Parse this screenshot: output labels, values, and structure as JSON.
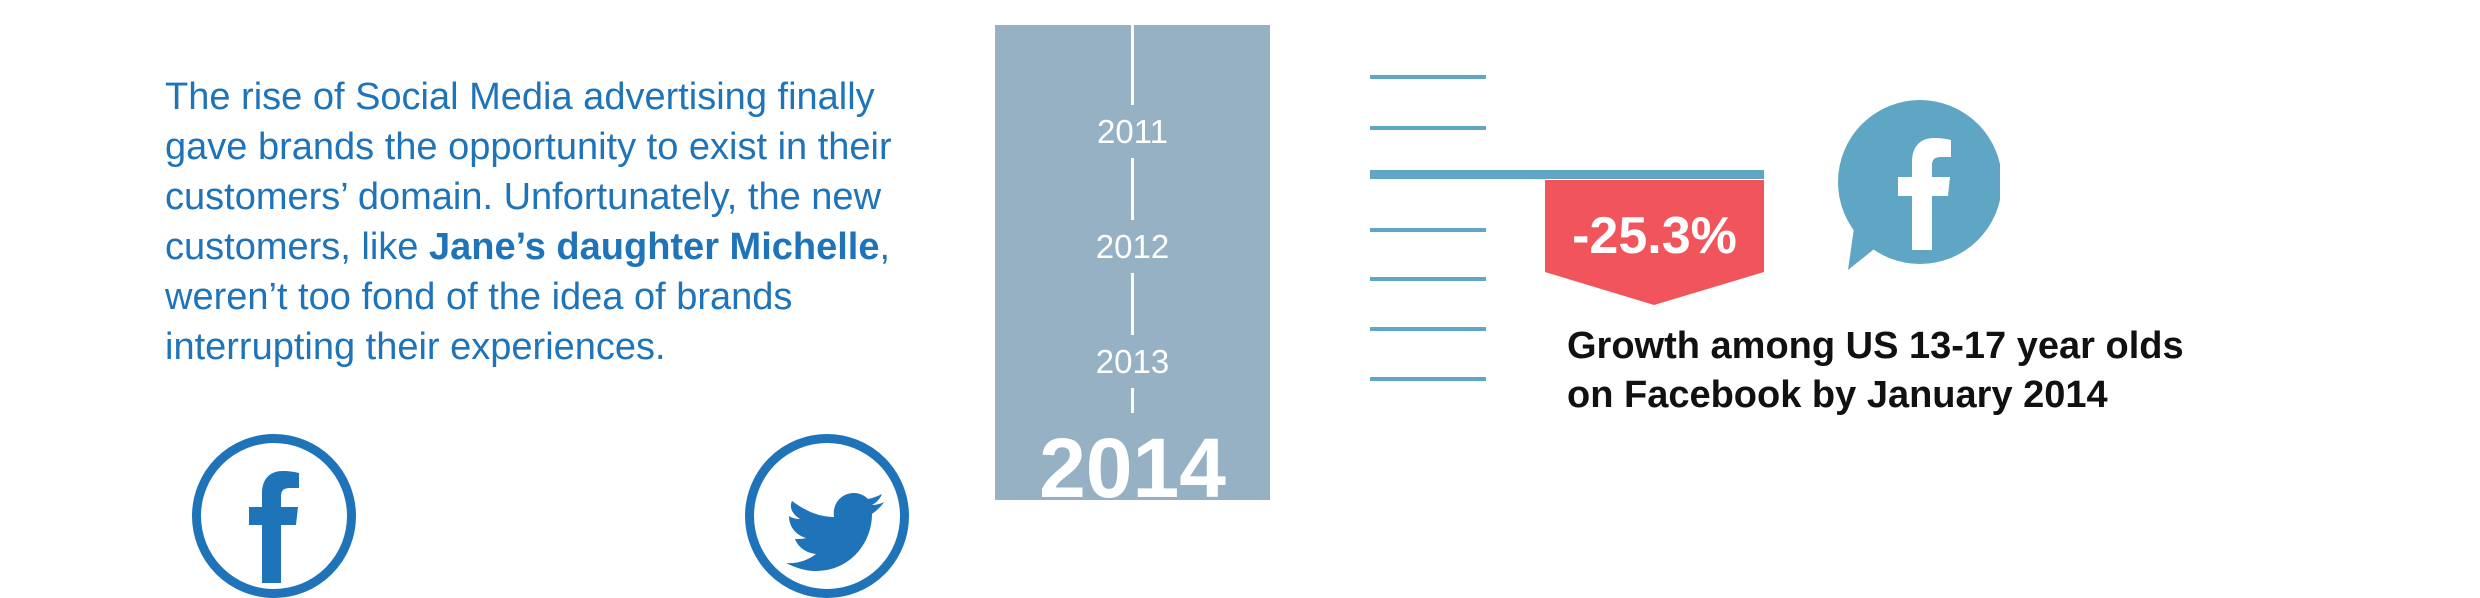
{
  "story": {
    "text_1": "The rise of Social Media advertising finally gave brands the opportunity to exist in their customers’ domain. Unfortunately, the new customers, like ",
    "highlight": "Jane’s daughter Michelle",
    "text_2": ", weren’t too fond of the idea of brands interrupting their experiences."
  },
  "icons": {
    "facebook_circle": "facebook-icon",
    "twitter_circle": "twitter-icon",
    "facebook_bubble": "facebook-speech-bubble-icon",
    "outline_color": "#1e73b9"
  },
  "timeline": {
    "years": [
      "2011",
      "2012",
      "2013"
    ],
    "current_year": "2014",
    "background": "#96b0c4"
  },
  "stat": {
    "value": "-25.3%",
    "caption_line_1": "Growth among US 13-17 year olds",
    "caption_line_2": "on Facebook by January 2014",
    "badge_color": "#f2545b",
    "accent_color": "#5ea6c4"
  }
}
